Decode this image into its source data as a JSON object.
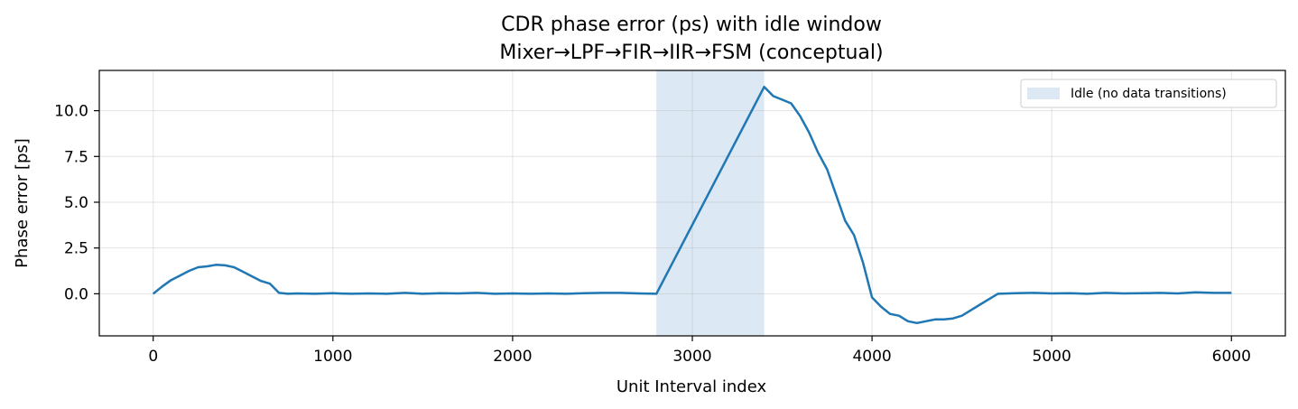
{
  "chart_data": {
    "type": "line",
    "title": "CDR phase error (ps) with idle window",
    "subtitle": "Mixer→LPF→FIR→IIR→FSM (conceptual)",
    "xlabel": "Unit Interval index",
    "ylabel": "Phase error [ps]",
    "xlim": [
      -300,
      6300
    ],
    "ylim": [
      -2.3,
      12.2
    ],
    "xticks": [
      0,
      1000,
      2000,
      3000,
      4000,
      5000,
      6000
    ],
    "yticks": [
      0.0,
      2.5,
      5.0,
      7.5,
      10.0
    ],
    "xtick_labels": [
      "0",
      "1000",
      "2000",
      "3000",
      "4000",
      "5000",
      "6000"
    ],
    "ytick_labels": [
      "0.0",
      "2.5",
      "5.0",
      "7.5",
      "10.0"
    ],
    "grid": true,
    "legend_position": "top-right",
    "idle_window": {
      "label": "Idle (no data transitions)",
      "x_start": 2800,
      "x_end": 3400,
      "color": "#dce8f3"
    },
    "series": [
      {
        "color": "#1f77b4",
        "x": [
          0,
          50,
          100,
          150,
          200,
          250,
          300,
          350,
          400,
          450,
          500,
          550,
          600,
          650,
          700,
          750,
          800,
          900,
          1000,
          1100,
          1200,
          1300,
          1400,
          1500,
          1600,
          1700,
          1800,
          1900,
          2000,
          2100,
          2200,
          2300,
          2400,
          2500,
          2600,
          2700,
          2800,
          3400,
          3450,
          3500,
          3550,
          3600,
          3650,
          3700,
          3750,
          3800,
          3850,
          3900,
          3950,
          4000,
          4050,
          4100,
          4150,
          4200,
          4250,
          4300,
          4350,
          4400,
          4450,
          4500,
          4550,
          4600,
          4650,
          4700,
          4800,
          4900,
          5000,
          5100,
          5200,
          5300,
          5400,
          5500,
          5600,
          5700,
          5800,
          5900,
          6000
        ],
        "y": [
          0.0,
          0.4,
          0.75,
          1.0,
          1.25,
          1.45,
          1.5,
          1.58,
          1.55,
          1.45,
          1.2,
          0.95,
          0.7,
          0.55,
          0.05,
          0.0,
          0.02,
          0.0,
          0.03,
          0.0,
          0.02,
          0.0,
          0.05,
          0.0,
          0.03,
          0.02,
          0.05,
          0.0,
          0.02,
          0.0,
          0.02,
          0.0,
          0.03,
          0.05,
          0.05,
          0.02,
          0.0,
          11.3,
          10.8,
          10.6,
          10.4,
          9.7,
          8.8,
          7.7,
          6.8,
          5.4,
          4.0,
          3.2,
          1.7,
          -0.2,
          -0.7,
          -1.1,
          -1.2,
          -1.5,
          -1.6,
          -1.5,
          -1.4,
          -1.4,
          -1.35,
          -1.2,
          -0.9,
          -0.6,
          -0.3,
          0.0,
          0.03,
          0.05,
          0.02,
          0.03,
          0.0,
          0.05,
          0.02,
          0.03,
          0.05,
          0.02,
          0.08,
          0.05,
          0.05
        ]
      }
    ]
  }
}
